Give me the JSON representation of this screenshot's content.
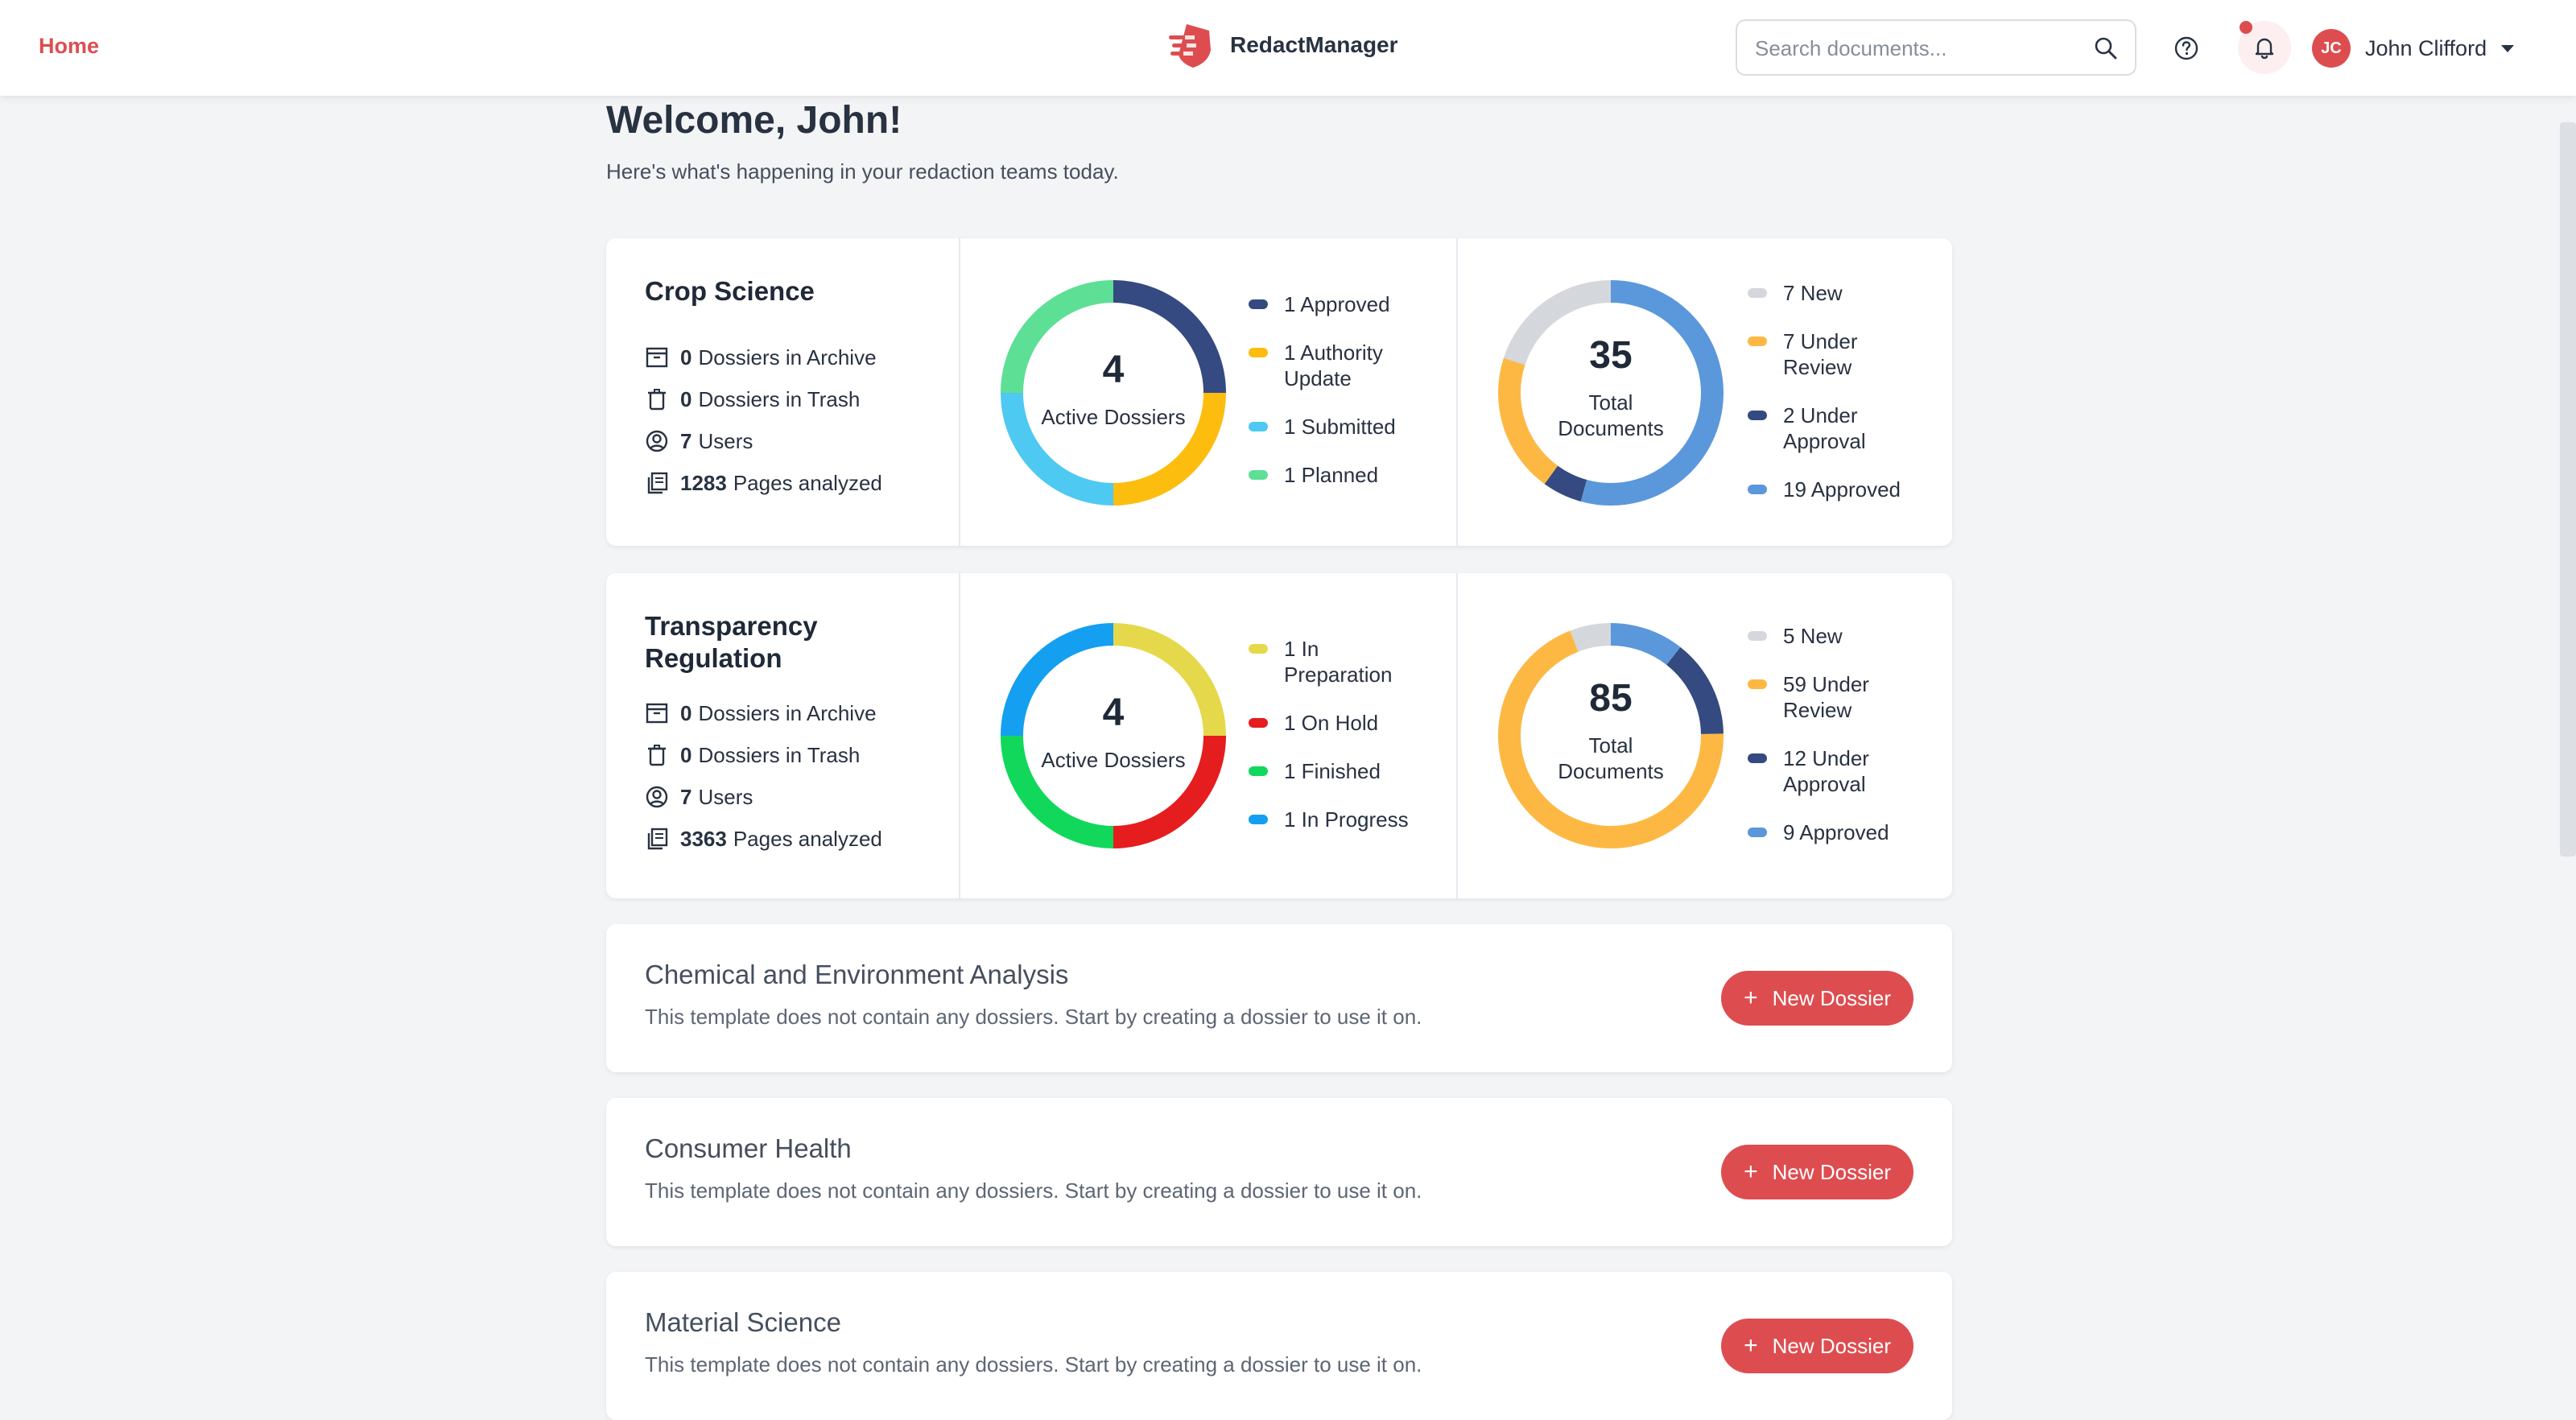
{
  "header": {
    "home_label": "Home",
    "brand_name": "RedactManager",
    "search_placeholder": "Search documents...",
    "user_initials": "JC",
    "user_name": "John Clifford"
  },
  "welcome": {
    "title": "Welcome, John!",
    "subtitle": "Here's what's happening in your redaction teams today."
  },
  "teams": [
    {
      "name": "Crop Science",
      "stats": [
        {
          "value": "0",
          "label": "Dossiers in Archive",
          "icon": "archive-icon"
        },
        {
          "value": "0",
          "label": "Dossiers in Trash",
          "icon": "trash-icon"
        },
        {
          "value": "7",
          "label": "Users",
          "icon": "user-circle-icon"
        },
        {
          "value": "1283",
          "label": "Pages analyzed",
          "icon": "pages-icon"
        }
      ],
      "dossiers": {
        "total": "4",
        "label": "Active Dossiers",
        "legend": [
          {
            "text": "1 Approved",
            "value": 1,
            "color": "#344a80"
          },
          {
            "text": "1 Authority Update",
            "value": 1,
            "color": "#fdbd0f"
          },
          {
            "text": "1 Submitted",
            "value": 1,
            "color": "#4dc9f2"
          },
          {
            "text": "1 Planned",
            "value": 1,
            "color": "#5ddf96"
          }
        ]
      },
      "documents": {
        "total": "35",
        "label": "Total Documents",
        "legend": [
          {
            "text": "7 New",
            "value": 7,
            "color": "#d4d7dc"
          },
          {
            "text": "7 Under Review",
            "value": 7,
            "color": "#fdb844"
          },
          {
            "text": "2 Under Approval",
            "value": 2,
            "color": "#344a80"
          },
          {
            "text": "19 Approved",
            "value": 19,
            "color": "#5b97db"
          }
        ]
      }
    },
    {
      "name": "Transparency Regulation",
      "stats": [
        {
          "value": "0",
          "label": "Dossiers in Archive",
          "icon": "archive-icon"
        },
        {
          "value": "0",
          "label": "Dossiers in Trash",
          "icon": "trash-icon"
        },
        {
          "value": "7",
          "label": "Users",
          "icon": "user-circle-icon"
        },
        {
          "value": "3363",
          "label": "Pages analyzed",
          "icon": "pages-icon"
        }
      ],
      "dossiers": {
        "total": "4",
        "label": "Active Dossiers",
        "legend": [
          {
            "text": "1 In Preparation",
            "value": 1,
            "color": "#e5d94b"
          },
          {
            "text": "1 On Hold",
            "value": 1,
            "color": "#e51d1f"
          },
          {
            "text": "1 Finished",
            "value": 1,
            "color": "#11d85a"
          },
          {
            "text": "1 In Progress",
            "value": 1,
            "color": "#149ff0"
          }
        ]
      },
      "documents": {
        "total": "85",
        "label": "Total Documents",
        "legend": [
          {
            "text": "5 New",
            "value": 5,
            "color": "#d4d7dc"
          },
          {
            "text": "59 Under Review",
            "value": 59,
            "color": "#fdb844"
          },
          {
            "text": "12 Under Approval",
            "value": 12,
            "color": "#344a80"
          },
          {
            "text": "9 Approved",
            "value": 9,
            "color": "#5b97db"
          }
        ]
      }
    }
  ],
  "templates": [
    {
      "name": "Chemical and Environment Analysis",
      "description": "This template does not contain any dossiers. Start by creating a dossier to use it on.",
      "button": "New Dossier"
    },
    {
      "name": "Consumer Health",
      "description": "This template does not contain any dossiers. Start by creating a dossier to use it on.",
      "button": "New Dossier"
    },
    {
      "name": "Material Science",
      "description": "This template does not contain any dossiers. Start by creating a dossier to use it on.",
      "button": "New Dossier"
    }
  ],
  "colors": {
    "accent": "#dd4d50",
    "background": "#f3f4f6"
  }
}
